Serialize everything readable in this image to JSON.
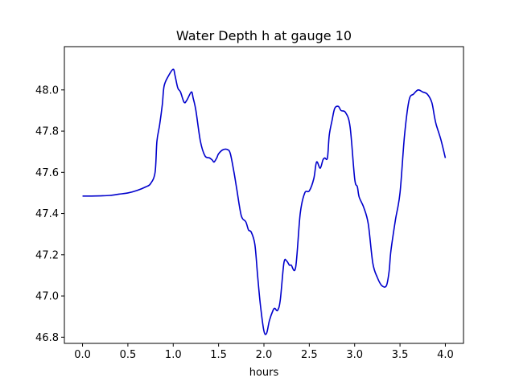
{
  "chart_data": {
    "type": "line",
    "title": "Water Depth h at gauge 10",
    "xlabel": "hours",
    "ylabel": "",
    "xlim": [
      -0.2,
      4.2
    ],
    "ylim": [
      46.77,
      48.21
    ],
    "xticks": [
      0.0,
      0.5,
      1.0,
      1.5,
      2.0,
      2.5,
      3.0,
      3.5,
      4.0
    ],
    "xtick_labels": [
      "0.0",
      "0.5",
      "1.0",
      "1.5",
      "2.0",
      "2.5",
      "3.0",
      "3.5",
      "4.0"
    ],
    "yticks": [
      46.8,
      47.0,
      47.2,
      47.4,
      47.6,
      47.8,
      48.0
    ],
    "ytick_labels": [
      "46.8",
      "47.0",
      "47.2",
      "47.4",
      "47.6",
      "47.8",
      "48.0"
    ],
    "grid": false,
    "line_color": "#0000cc",
    "series": [
      {
        "x": [
          0.0,
          0.1,
          0.2,
          0.3,
          0.4,
          0.5,
          0.6,
          0.7,
          0.75,
          0.8,
          0.82,
          0.85,
          0.88,
          0.9,
          0.95,
          1.0,
          1.02,
          1.05,
          1.08,
          1.12,
          1.15,
          1.2,
          1.22,
          1.25,
          1.3,
          1.35,
          1.4,
          1.43,
          1.45,
          1.48,
          1.5,
          1.55,
          1.6,
          1.63,
          1.67,
          1.7,
          1.75,
          1.8,
          1.83,
          1.86,
          1.9,
          1.93,
          1.96,
          2.0,
          2.03,
          2.06,
          2.1,
          2.12,
          2.15,
          2.18,
          2.22,
          2.25,
          2.28,
          2.3,
          2.35,
          2.4,
          2.45,
          2.5,
          2.55,
          2.58,
          2.62,
          2.65,
          2.67,
          2.7,
          2.72,
          2.75,
          2.78,
          2.82,
          2.85,
          2.9,
          2.95,
          3.0,
          3.03,
          3.05,
          3.1,
          3.15,
          3.2,
          3.25,
          3.3,
          3.35,
          3.38,
          3.4,
          3.45,
          3.5,
          3.55,
          3.6,
          3.65,
          3.7,
          3.75,
          3.8,
          3.85,
          3.88,
          3.9,
          3.95,
          4.0
        ],
        "y": [
          47.485,
          47.485,
          47.486,
          47.488,
          47.494,
          47.5,
          47.512,
          47.53,
          47.545,
          47.6,
          47.75,
          47.83,
          47.93,
          48.02,
          48.07,
          48.1,
          48.07,
          48.01,
          47.99,
          47.94,
          47.95,
          47.99,
          47.96,
          47.9,
          47.75,
          47.68,
          47.67,
          47.66,
          47.65,
          47.67,
          47.69,
          47.71,
          47.71,
          47.69,
          47.6,
          47.52,
          47.39,
          47.36,
          47.32,
          47.31,
          47.25,
          47.1,
          46.96,
          46.83,
          46.82,
          46.88,
          46.93,
          46.94,
          46.93,
          46.98,
          47.16,
          47.17,
          47.15,
          47.15,
          47.14,
          47.4,
          47.5,
          47.51,
          47.57,
          47.65,
          47.62,
          47.66,
          47.67,
          47.67,
          47.78,
          47.85,
          47.91,
          47.92,
          47.9,
          47.89,
          47.82,
          47.57,
          47.53,
          47.48,
          47.43,
          47.35,
          47.16,
          47.09,
          47.05,
          47.05,
          47.12,
          47.22,
          47.37,
          47.5,
          47.78,
          47.95,
          47.98,
          48.0,
          47.99,
          47.98,
          47.94,
          47.87,
          47.83,
          47.76,
          47.67
        ]
      }
    ]
  }
}
